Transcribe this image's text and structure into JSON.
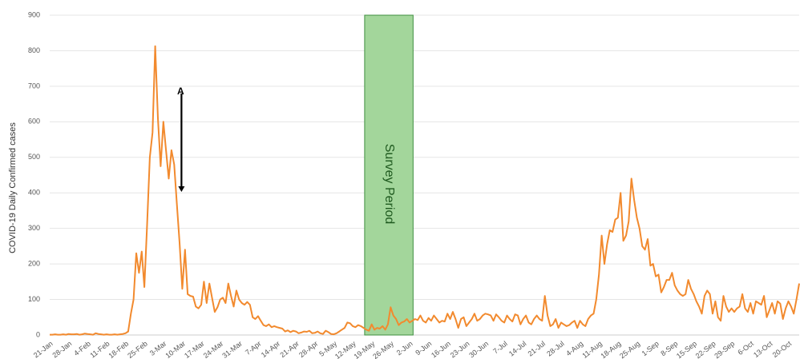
{
  "chart_data": {
    "type": "line",
    "ylabel": "COVID-19 Daily Confirmed cases",
    "ylim": [
      0,
      900
    ],
    "yticks": [
      0,
      100,
      200,
      300,
      400,
      500,
      600,
      700,
      800,
      900
    ],
    "grid": true,
    "color": "#f28a2e",
    "categories": [
      "21-Jan",
      null,
      null,
      null,
      null,
      null,
      null,
      "28-Jan",
      null,
      null,
      null,
      null,
      null,
      null,
      "4-Feb",
      null,
      null,
      null,
      null,
      null,
      null,
      "11-Feb",
      null,
      null,
      null,
      null,
      null,
      null,
      "18-Feb",
      null,
      null,
      null,
      null,
      null,
      null,
      "25-Feb",
      null,
      null,
      null,
      null,
      null,
      null,
      "3-Mar",
      null,
      null,
      null,
      null,
      null,
      null,
      "10-Mar",
      null,
      null,
      null,
      null,
      null,
      null,
      "17-Mar",
      null,
      null,
      null,
      null,
      null,
      null,
      "24-Mar",
      null,
      null,
      null,
      null,
      null,
      null,
      "31-Mar",
      null,
      null,
      null,
      null,
      null,
      null,
      "7-Apr",
      null,
      null,
      null,
      null,
      null,
      null,
      "14-Apr",
      null,
      null,
      null,
      null,
      null,
      null,
      "21-Apr",
      null,
      null,
      null,
      null,
      null,
      null,
      "28-Apr",
      null,
      null,
      null,
      null,
      null,
      null,
      "5-May",
      null,
      null,
      null,
      null,
      null,
      null,
      "12-May",
      null,
      null,
      null,
      null,
      null,
      null,
      "19-May",
      null,
      null,
      null,
      null,
      null,
      null,
      "26-May",
      null,
      null,
      null,
      null,
      null,
      null,
      "2-Jun",
      null,
      null,
      null,
      null,
      null,
      null,
      "9-Jun",
      null,
      null,
      null,
      null,
      null,
      null,
      "16-Jun",
      null,
      null,
      null,
      null,
      null,
      null,
      "23-Jun",
      null,
      null,
      null,
      null,
      null,
      null,
      "30-Jun",
      null,
      null,
      null,
      null,
      null,
      null,
      "7-Jul",
      null,
      null,
      null,
      null,
      null,
      null,
      "14-Jul",
      null,
      null,
      null,
      null,
      null,
      null,
      "21-Jul",
      null,
      null,
      null,
      null,
      null,
      null,
      "28-Jul",
      null,
      null,
      null,
      null,
      null,
      null,
      "4-Aug",
      null,
      null,
      null,
      null,
      null,
      null,
      "11-Aug",
      null,
      null,
      null,
      null,
      null,
      null,
      "18-Aug",
      null,
      null,
      null,
      null,
      null,
      null,
      "25-Aug",
      null,
      null,
      null,
      null,
      null,
      null,
      "1-Sep",
      null,
      null,
      null,
      null,
      null,
      null,
      "8-Sep",
      null,
      null,
      null,
      null,
      null,
      null,
      "15-Sep",
      null,
      null,
      null,
      null,
      null,
      null,
      "22-Sep",
      null,
      null,
      null,
      null,
      null,
      null,
      "29-Sep",
      null,
      null,
      null,
      null,
      null,
      null,
      "6-Oct",
      null,
      null,
      null,
      null,
      null,
      null,
      "13-Oct",
      null,
      null,
      null,
      null,
      null,
      null,
      "20-Oct",
      null,
      null,
      null,
      null
    ],
    "values": [
      1,
      1,
      2,
      1,
      1,
      2,
      1,
      3,
      2,
      2,
      3,
      1,
      2,
      4,
      3,
      2,
      1,
      5,
      3,
      2,
      1,
      2,
      1,
      1,
      2,
      1,
      2,
      3,
      5,
      10,
      60,
      100,
      230,
      175,
      235,
      135,
      310,
      500,
      570,
      813,
      610,
      475,
      600,
      520,
      440,
      520,
      480,
      370,
      260,
      130,
      240,
      115,
      110,
      108,
      80,
      75,
      85,
      150,
      90,
      145,
      105,
      65,
      78,
      100,
      105,
      90,
      145,
      110,
      80,
      125,
      100,
      90,
      85,
      93,
      85,
      50,
      45,
      53,
      40,
      28,
      25,
      30,
      22,
      25,
      22,
      20,
      18,
      10,
      13,
      8,
      12,
      10,
      5,
      7,
      10,
      9,
      12,
      5,
      6,
      10,
      5,
      3,
      12,
      8,
      3,
      2,
      5,
      10,
      15,
      20,
      35,
      33,
      25,
      22,
      28,
      25,
      20,
      15,
      12,
      30,
      15,
      20,
      18,
      25,
      15,
      30,
      78,
      55,
      45,
      28,
      35,
      38,
      45,
      35,
      40,
      45,
      42,
      55,
      40,
      35,
      48,
      40,
      55,
      45,
      35,
      40,
      38,
      60,
      45,
      65,
      45,
      20,
      45,
      50,
      25,
      35,
      45,
      60,
      40,
      45,
      55,
      60,
      58,
      55,
      40,
      58,
      50,
      40,
      35,
      55,
      45,
      38,
      58,
      55,
      30,
      45,
      55,
      35,
      30,
      45,
      55,
      45,
      40,
      110,
      55,
      25,
      30,
      45,
      20,
      35,
      30,
      25,
      28,
      35,
      40,
      20,
      40,
      30,
      25,
      45,
      55,
      60,
      100,
      170,
      280,
      200,
      255,
      295,
      290,
      325,
      330,
      400,
      265,
      280,
      320,
      440,
      380,
      330,
      300,
      250,
      240,
      270,
      195,
      200,
      165,
      170,
      120,
      135,
      155,
      155,
      175,
      140,
      125,
      115,
      110,
      115,
      155,
      130,
      115,
      95,
      80,
      60,
      110,
      125,
      115,
      60,
      95,
      50,
      40,
      110,
      80,
      65,
      75,
      65,
      75,
      80,
      115,
      75,
      65,
      90,
      60,
      95,
      90,
      85,
      110,
      50,
      70,
      90,
      60,
      95,
      88,
      45,
      75,
      95,
      80,
      60,
      100,
      145
    ],
    "shade": {
      "label": "Survey Period",
      "span": [
        116.4,
        134.3
      ],
      "color": "#a3d69b",
      "edge": "#3f8f3f",
      "text_color": "#1f5a1f"
    },
    "annotations": [
      {
        "text": "A",
        "x": 48.7,
        "y": 680,
        "y_end": 405
      }
    ]
  }
}
